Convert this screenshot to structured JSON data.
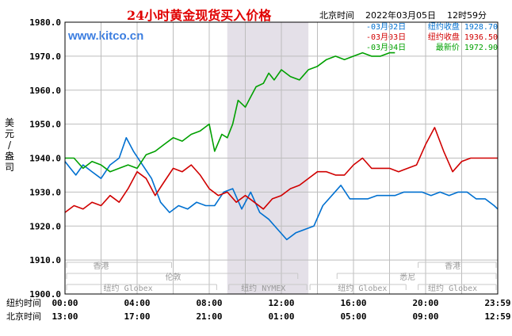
{
  "header": {
    "title": "24小时黄金现货买入价格",
    "beijing_time_label": "北京时间",
    "date": "2022年03月05日",
    "time": "12时59分"
  },
  "site": "www.kitco.cn",
  "ylabel": "美元/盎司",
  "legend": [
    {
      "date": "-03月02日",
      "label": "纽约收盘",
      "value": "1928.70",
      "color": "#0070d0"
    },
    {
      "date": "-03月03日",
      "label": "纽约收盘",
      "value": "1936.50",
      "color": "#d00000"
    },
    {
      "date": "-03月04日",
      "label": "最新价",
      "value": "1972.90",
      "color": "#00a000"
    }
  ],
  "sessions": {
    "row1": [
      "香港",
      "香港"
    ],
    "row2": [
      "伦敦",
      "悉尼"
    ],
    "row3": [
      "纽约 Globex",
      "纽约 NYMEX",
      "纽约 Globex",
      "纽约 Globex"
    ]
  },
  "x_rows": [
    {
      "label": "纽约时间",
      "ticks": [
        "00:00",
        "04:00",
        "08:00",
        "12:00",
        "16:00",
        "20:00",
        "23:59"
      ]
    },
    {
      "label": "北京时间",
      "ticks": [
        "13:00",
        "17:00",
        "21:00",
        "01:00",
        "05:00",
        "09:00",
        "12:59"
      ]
    }
  ],
  "chart_data": {
    "type": "line",
    "title": "24小时黄金现货买入价格",
    "ylabel": "美元/盎司",
    "xlabel": "纽约时间 / 北京时间",
    "ylim": [
      1900,
      1980
    ],
    "xlim": [
      0,
      24
    ],
    "yticks": [
      1900,
      1910,
      1920,
      1930,
      1940,
      1950,
      1960,
      1970,
      1980
    ],
    "grid": true,
    "legend_position": "top-right",
    "nymex_session_hours": [
      9.0,
      13.5
    ],
    "series": [
      {
        "name": "03月02日",
        "close_label": "纽约收盘 1928.70",
        "color": "#0070d0",
        "x": [
          0,
          0.3,
          0.6,
          1.0,
          1.5,
          2.0,
          2.5,
          3.0,
          3.4,
          3.8,
          4.3,
          4.8,
          5.3,
          5.8,
          6.3,
          6.8,
          7.3,
          7.8,
          8.3,
          8.8,
          9.3,
          9.8,
          10.3,
          10.8,
          11.3,
          11.8,
          12.3,
          12.8,
          13.3,
          13.8,
          14.3,
          14.8,
          15.3,
          15.8,
          16.3,
          16.8,
          17.3,
          17.8,
          18.3,
          18.8,
          19.3,
          19.8,
          20.3,
          20.8,
          21.3,
          21.8,
          22.3,
          22.8,
          23.3,
          23.8,
          24.0
        ],
        "y": [
          1939,
          1937,
          1935,
          1938,
          1936,
          1934,
          1938,
          1940,
          1946,
          1942,
          1938,
          1934,
          1927,
          1924,
          1926,
          1925,
          1927,
          1926,
          1926,
          1930,
          1931,
          1925,
          1930,
          1924,
          1922,
          1919,
          1916,
          1918,
          1919,
          1920,
          1926,
          1929,
          1932,
          1928,
          1928,
          1928,
          1929,
          1929,
          1929,
          1930,
          1930,
          1930,
          1929,
          1930,
          1929,
          1930,
          1930,
          1928,
          1928,
          1926,
          1925
        ]
      },
      {
        "name": "03月03日",
        "close_label": "纽约收盘 1936.50",
        "color": "#d00000",
        "x": [
          0,
          0.5,
          1.0,
          1.5,
          2.0,
          2.5,
          3.0,
          3.5,
          4.0,
          4.5,
          5.0,
          5.5,
          6.0,
          6.5,
          7.0,
          7.5,
          8.0,
          8.5,
          9.0,
          9.5,
          10.0,
          10.5,
          11.0,
          11.5,
          12.0,
          12.5,
          13.0,
          13.5,
          14.0,
          14.5,
          15.0,
          15.5,
          16.0,
          16.5,
          17.0,
          17.5,
          18.0,
          18.5,
          19.0,
          19.5,
          20.0,
          20.5,
          21.0,
          21.5,
          22.0,
          22.5,
          23.0,
          23.5,
          24.0
        ],
        "y": [
          1924,
          1926,
          1925,
          1927,
          1926,
          1929,
          1927,
          1931,
          1936,
          1934,
          1929,
          1933,
          1937,
          1936,
          1938,
          1935,
          1931,
          1929,
          1930,
          1927,
          1929,
          1927,
          1925,
          1928,
          1929,
          1931,
          1932,
          1934,
          1936,
          1936,
          1935,
          1935,
          1938,
          1940,
          1937,
          1937,
          1937,
          1936,
          1937,
          1938,
          1944,
          1949,
          1942,
          1936,
          1939,
          1940,
          1940,
          1940,
          1940
        ]
      },
      {
        "name": "03月04日",
        "close_label": "最新价 1972.90",
        "color": "#00a000",
        "x": [
          0,
          0.5,
          1.0,
          1.5,
          2.0,
          2.5,
          3.0,
          3.5,
          4.0,
          4.5,
          5.0,
          5.5,
          6.0,
          6.5,
          7.0,
          7.5,
          8.0,
          8.3,
          8.7,
          9.0,
          9.3,
          9.6,
          10.0,
          10.3,
          10.6,
          11.0,
          11.3,
          11.6,
          12.0,
          12.5,
          13.0,
          13.5,
          14.0,
          14.5,
          15.0,
          15.5,
          16.0,
          16.5,
          17.0,
          17.5,
          18.0,
          18.3
        ],
        "y": [
          1940,
          1940,
          1937,
          1939,
          1938,
          1936,
          1937,
          1938,
          1937,
          1941,
          1942,
          1944,
          1946,
          1945,
          1947,
          1948,
          1950,
          1942,
          1947,
          1946,
          1950,
          1957,
          1955,
          1958,
          1961,
          1962,
          1965,
          1963,
          1966,
          1964,
          1963,
          1966,
          1967,
          1969,
          1970,
          1969,
          1970,
          1971,
          1970,
          1970,
          1971,
          1971
        ]
      }
    ]
  }
}
